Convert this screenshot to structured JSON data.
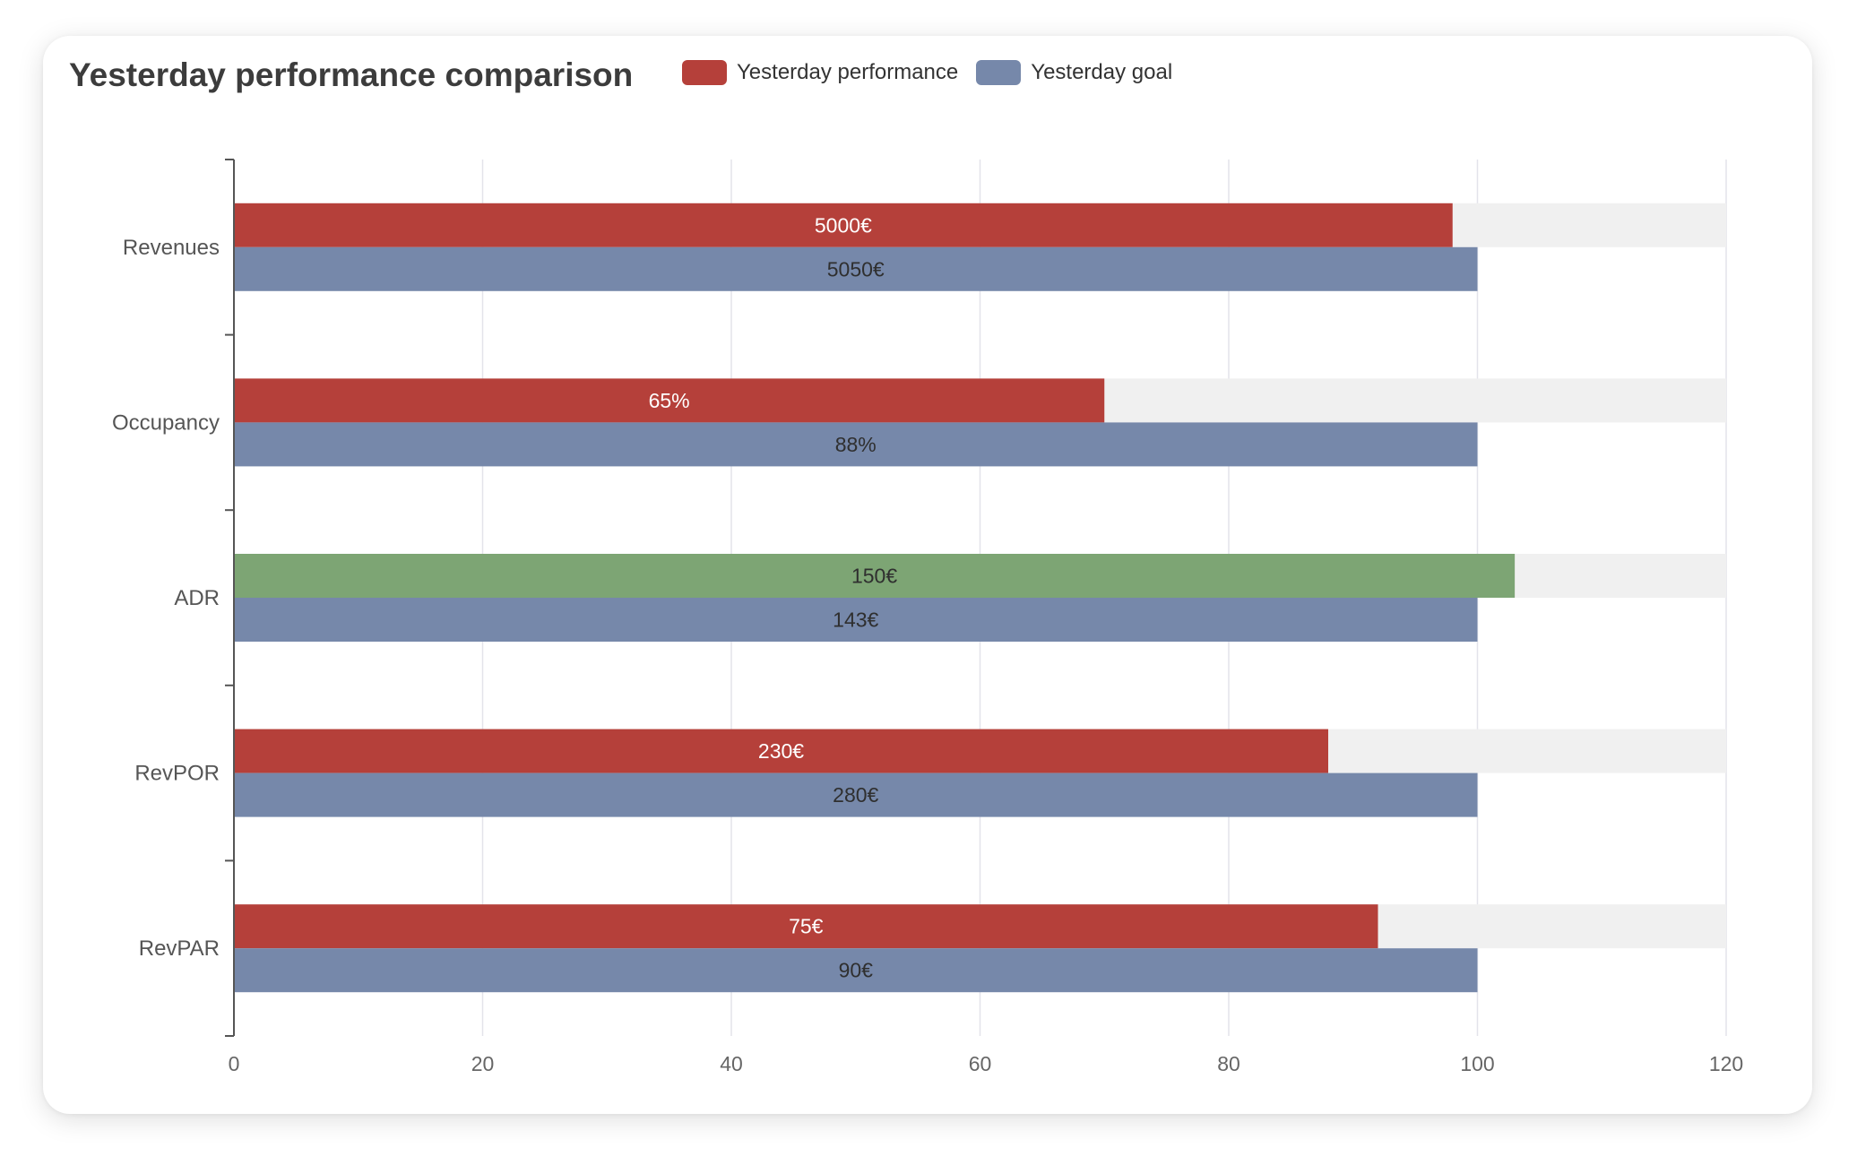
{
  "chart_data": {
    "type": "bar",
    "orientation": "horizontal",
    "title": "Yesterday performance comparison",
    "legend_position": "top",
    "categories": [
      "Revenues",
      "Occupancy",
      "ADR",
      "RevPOR",
      "RevPAR"
    ],
    "series": [
      {
        "name": "Yesterday performance",
        "color": "#b5403a",
        "values": [
          98,
          70,
          103,
          88,
          92
        ],
        "labels": [
          "5000€",
          "65%",
          "150€",
          "230€",
          "75€"
        ],
        "bar_colors": [
          "#b5403a",
          "#b5403a",
          "#7da574",
          "#b5403a",
          "#b5403a"
        ]
      },
      {
        "name": "Yesterday goal",
        "color": "#7688aa",
        "values": [
          100,
          100,
          100,
          100,
          100
        ],
        "labels": [
          "5050€",
          "88%",
          "143€",
          "280€",
          "90€"
        ]
      }
    ],
    "background_track_max": 120,
    "background_track_color": "#f0f0f0",
    "xlim": [
      0,
      120
    ],
    "xticks": [
      0,
      20,
      40,
      60,
      80,
      100,
      120
    ],
    "xlabel": "",
    "ylabel": "",
    "grid": true
  }
}
